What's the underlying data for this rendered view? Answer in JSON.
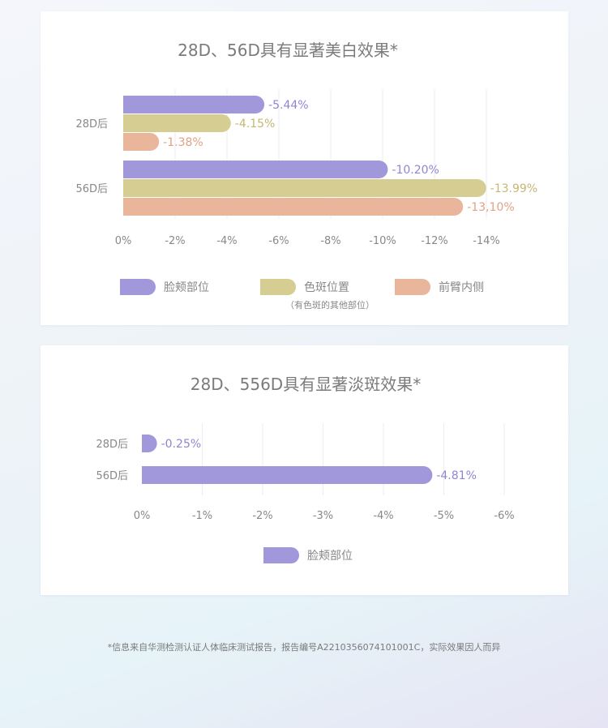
{
  "colors": {
    "purple": "#a198dc",
    "khaki": "#d6cd93",
    "peach": "#e9b59b",
    "purple_text": "#8f86d2",
    "khaki_text": "#c7b672",
    "peach_text": "#e0a384",
    "grid": "#ececf1",
    "text": "#888888",
    "title": "#7b7b7b"
  },
  "chart_data": [
    {
      "type": "bar",
      "orientation": "horizontal",
      "title": "28D、56D具有显著美白效果*",
      "categories": [
        "28D后",
        "56D后"
      ],
      "series": [
        {
          "name": "脸颊部位",
          "color": "purple",
          "values": [
            -5.44,
            -10.2
          ],
          "labels": [
            "-5.44%",
            "-10.20%"
          ]
        },
        {
          "name": "色斑位置",
          "note": "（有色斑的其他部位）",
          "color": "khaki",
          "values": [
            -4.15,
            -13.99
          ],
          "labels": [
            "-4.15%",
            "-13.99%"
          ]
        },
        {
          "name": "前臂内侧",
          "color": "peach",
          "values": [
            -1.38,
            -13.1
          ],
          "labels": [
            "-1.38%",
            "-13,10%"
          ]
        }
      ],
      "xlim": [
        0,
        -14
      ],
      "xticks": [
        0,
        -2,
        -4,
        -6,
        -8,
        -10,
        -12,
        -14
      ],
      "xtick_labels": [
        "0%",
        "-2%",
        "-4%",
        "-6%",
        "-8%",
        "-10%",
        "-12%",
        "-14%"
      ],
      "grid": true,
      "legend": "bottom"
    },
    {
      "type": "bar",
      "orientation": "horizontal",
      "title": "28D、556D具有显著淡斑效果*",
      "categories": [
        "28D后",
        "56D后"
      ],
      "series": [
        {
          "name": "脸颊部位",
          "color": "purple",
          "values": [
            -0.25,
            -4.81
          ],
          "labels": [
            "-0.25%",
            "-4.81%"
          ]
        }
      ],
      "xlim": [
        0,
        -6
      ],
      "xticks": [
        0,
        -1,
        -2,
        -3,
        -4,
        -5,
        -6
      ],
      "xtick_labels": [
        "0%",
        "-1%",
        "-2%",
        "-3%",
        "-4%",
        "-5%",
        "-6%"
      ],
      "grid": true,
      "legend": "bottom"
    }
  ],
  "footnote": "*信息来自华测检测认证人体临床测试报告，报告编号A2210356074101001C，实际效果因人而异"
}
